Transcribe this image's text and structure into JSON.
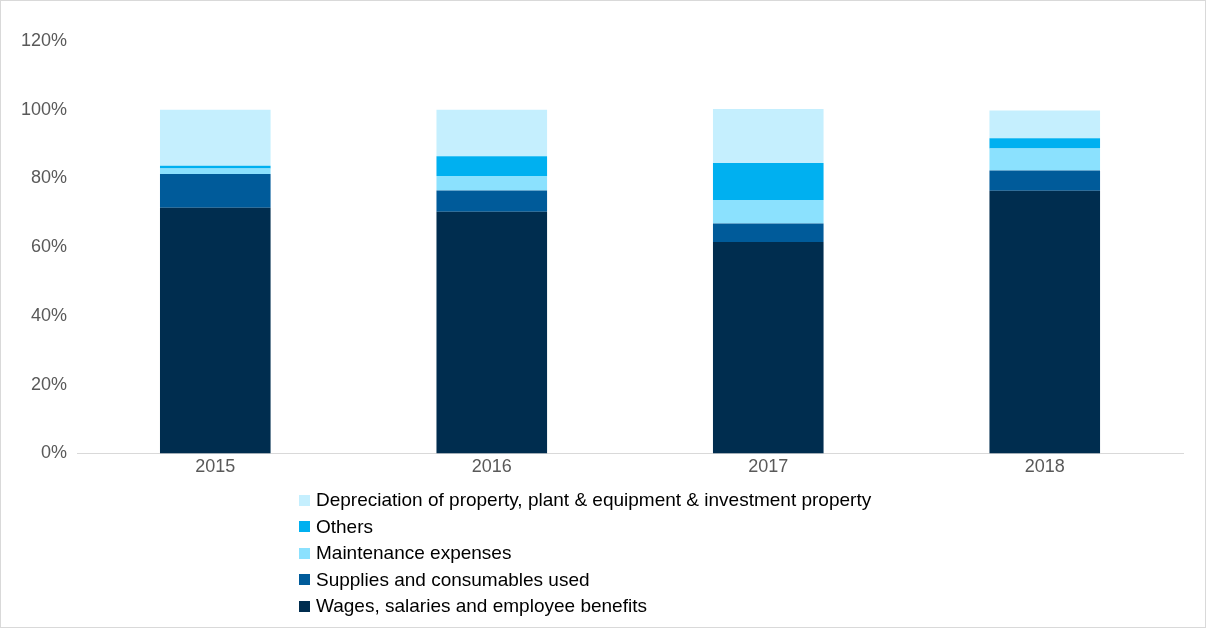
{
  "chart_data": {
    "type": "bar",
    "stacked": true,
    "categories": [
      "2015",
      "2016",
      "2017",
      "2018"
    ],
    "series": [
      {
        "name": "Wages, salaries and employee benefits",
        "color": "#002d4f",
        "values": [
          71.5,
          70.3,
          61.5,
          76.4
        ]
      },
      {
        "name": "Supplies and consumables used",
        "color": "#005b9a",
        "values": [
          9.8,
          6.2,
          5.4,
          5.9
        ]
      },
      {
        "name": "Maintenance expenses",
        "color": "#8be1fe",
        "values": [
          1.6,
          4.2,
          6.8,
          6.4
        ]
      },
      {
        "name": "Others",
        "color": "#00b0f0",
        "values": [
          0.8,
          5.8,
          10.8,
          3.0
        ]
      },
      {
        "name": "Depreciation of property, plant & equipment & investment property",
        "color": "#c5effe",
        "values": [
          16.3,
          13.5,
          15.7,
          8.1
        ]
      }
    ],
    "ylim": [
      0,
      120
    ],
    "yticks": [
      {
        "value": 0,
        "label": "0%"
      },
      {
        "value": 20,
        "label": "20%"
      },
      {
        "value": 40,
        "label": "40%"
      },
      {
        "value": 60,
        "label": "60%"
      },
      {
        "value": 80,
        "label": "80%"
      },
      {
        "value": 100,
        "label": "100%"
      },
      {
        "value": 120,
        "label": "120%"
      }
    ],
    "grid": false,
    "legend": "bottom"
  }
}
